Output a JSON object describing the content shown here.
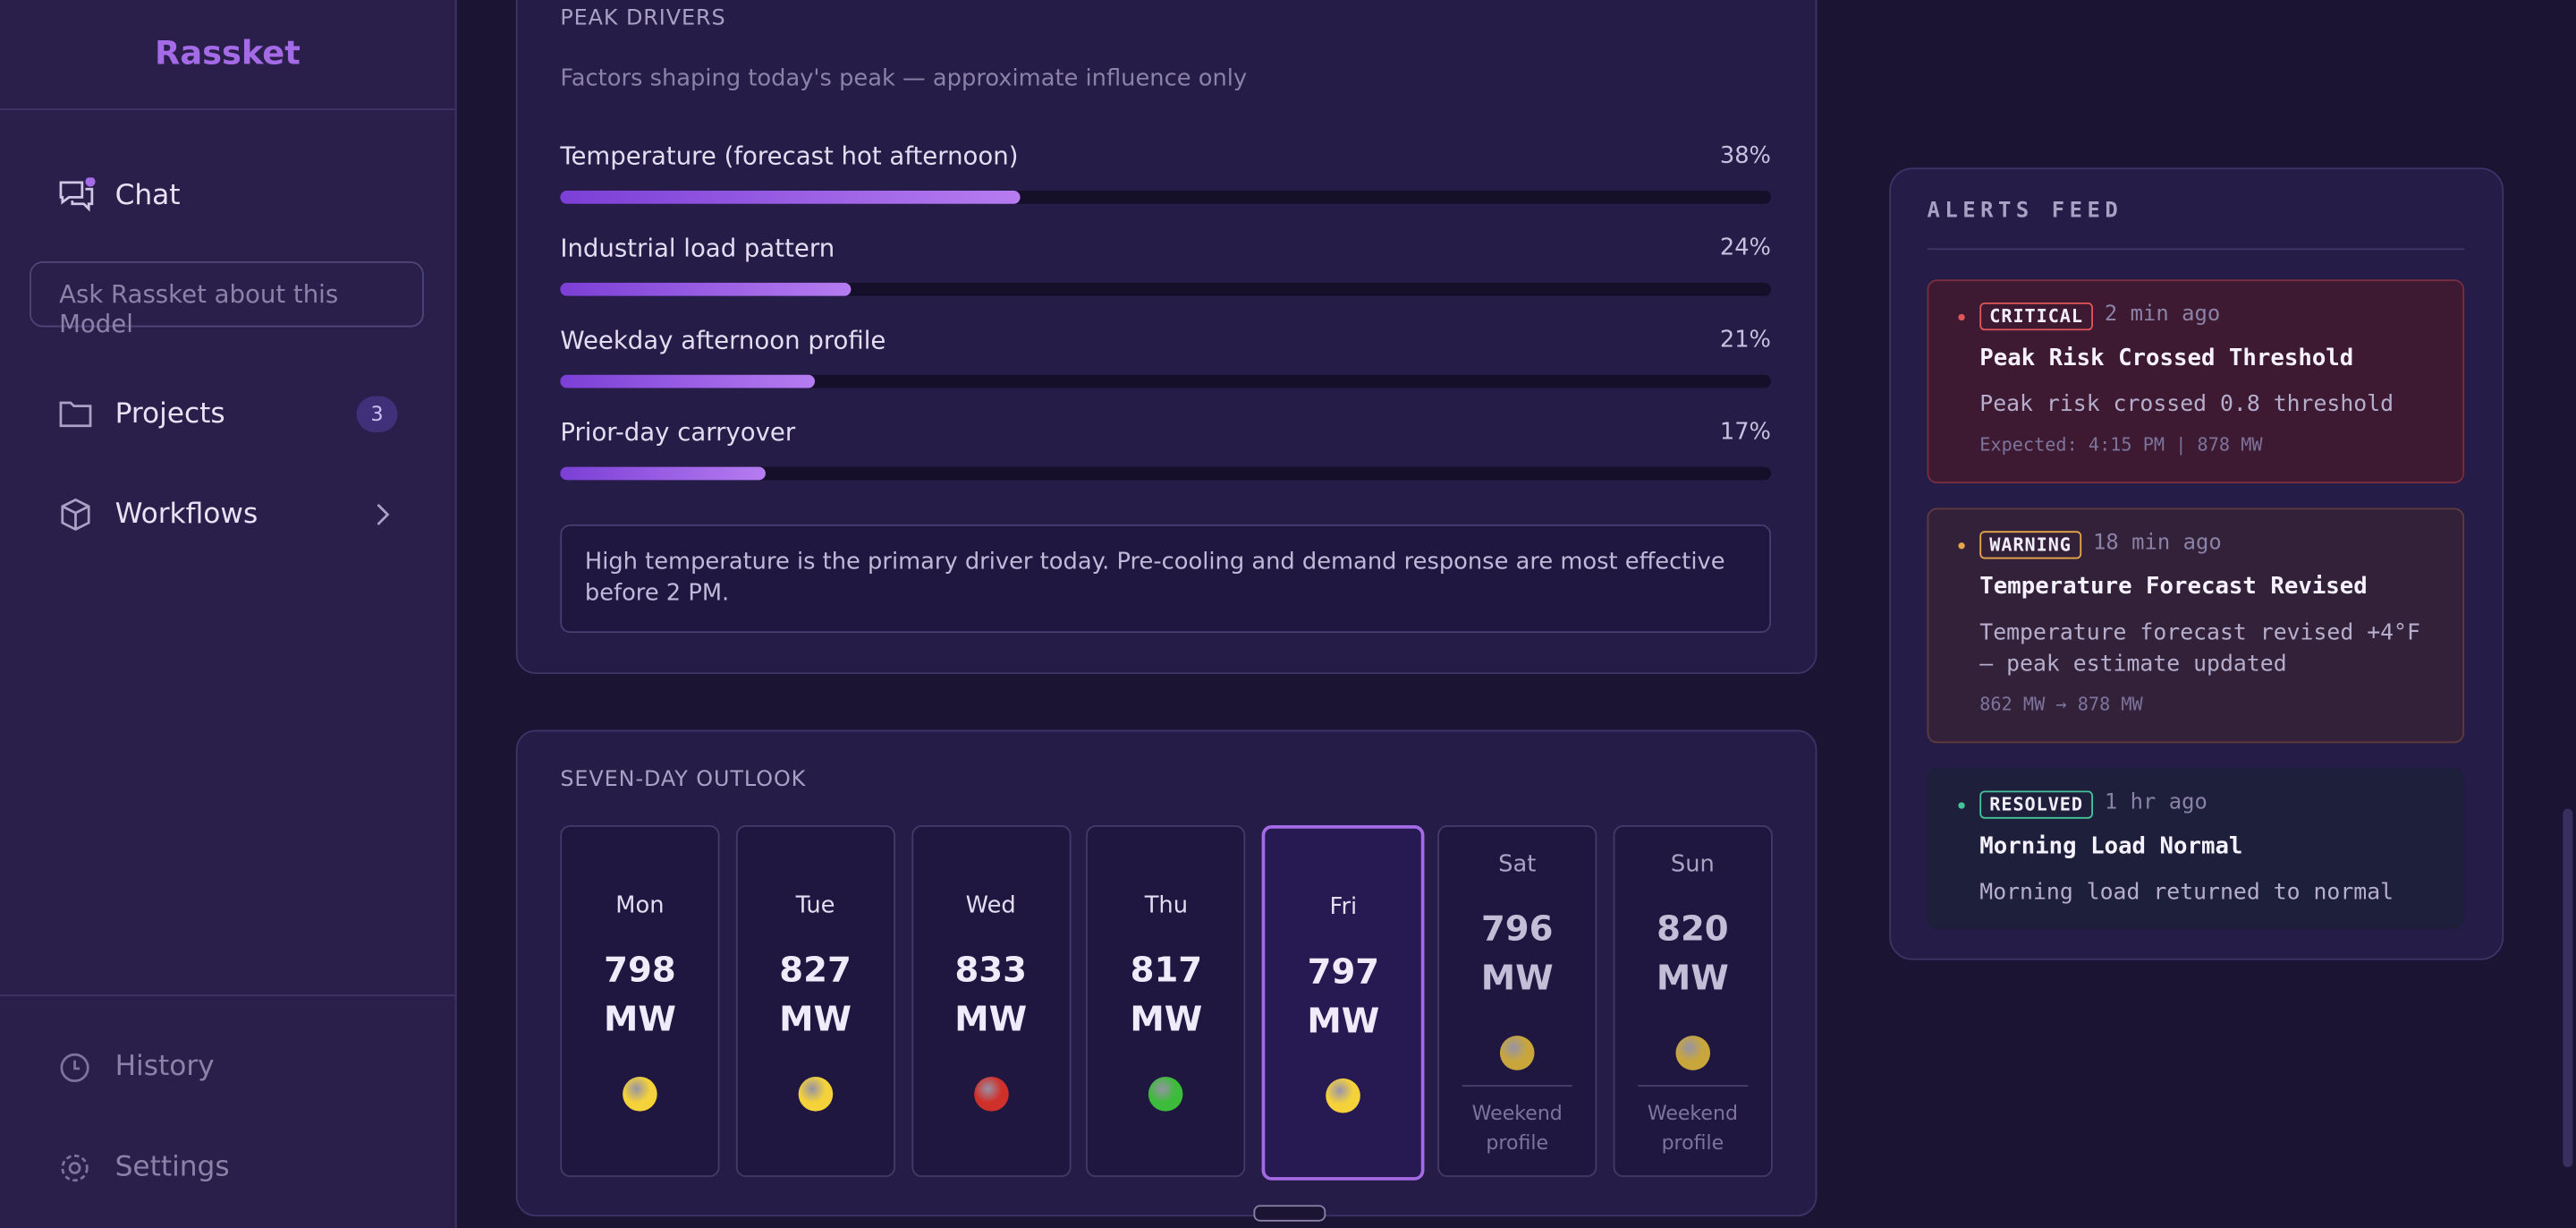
{
  "sidebar": {
    "brand": "Rassket",
    "chat": "Chat",
    "search_placeholder": "Ask Rassket about this Model",
    "projects": {
      "label": "Projects",
      "badge": "3"
    },
    "workflows": "Workflows",
    "history": "History",
    "settings": "Settings"
  },
  "peak_drivers": {
    "title": "PEAK DRIVERS",
    "subtitle": "Factors shaping today's peak — approximate influence only",
    "drivers": [
      {
        "name": "Temperature (forecast hot afternoon)",
        "value": 38,
        "value_label": "38%"
      },
      {
        "name": "Industrial load pattern",
        "value": 24,
        "value_label": "24%"
      },
      {
        "name": "Weekday afternoon profile",
        "value": 21,
        "value_label": "21%"
      },
      {
        "name": "Prior-day carryover",
        "value": 17,
        "value_label": "17%"
      }
    ],
    "note": "High temperature is the primary driver today. Pre-cooling and demand response are most effective before 2 PM."
  },
  "outlook": {
    "title": "SEVEN-DAY OUTLOOK",
    "days": [
      {
        "day": "Mon",
        "load": "798",
        "unit": "MW",
        "status": "#f5d23a"
      },
      {
        "day": "Tue",
        "load": "827",
        "unit": "MW",
        "status": "#f5d23a"
      },
      {
        "day": "Wed",
        "load": "833",
        "unit": "MW",
        "status": "#d0302a"
      },
      {
        "day": "Thu",
        "load": "817",
        "unit": "MW",
        "status": "#3dbb3a"
      },
      {
        "day": "Fri",
        "load": "797",
        "unit": "MW",
        "status": "#f5d23a",
        "selected": true
      },
      {
        "day": "Sat",
        "load": "796",
        "unit": "MW",
        "status": "#c9a63c",
        "note": "Weekend profile"
      },
      {
        "day": "Sun",
        "load": "820",
        "unit": "MW",
        "status": "#c9a63c",
        "note": "Weekend profile"
      }
    ]
  },
  "alerts": {
    "title": "ALERTS FEED",
    "items": [
      {
        "level": "CRITICAL",
        "time": "2 min ago",
        "title": "Peak Risk Crossed Threshold",
        "message": "Peak risk crossed 0.8 threshold",
        "detail": "Expected: 4:15 PM | 878 MW",
        "color": "#e0565b",
        "bg": "#3d1a32",
        "border": "#7a2d3f"
      },
      {
        "level": "WARNING",
        "time": "18 min ago",
        "title": "Temperature Forecast Revised",
        "message": "Temperature forecast revised +4°F — peak estimate updated",
        "detail": "862 MW → 878 MW",
        "color": "#e8a64a",
        "bg": "#33213a",
        "border": "#5e3b3e"
      },
      {
        "level": "RESOLVED",
        "time": "1 hr ago",
        "title": "Morning Load Normal",
        "message": "Morning load returned to normal",
        "color": "#43c49a",
        "bg": "#1e1f3a",
        "border": "#1e1f3a"
      }
    ]
  }
}
